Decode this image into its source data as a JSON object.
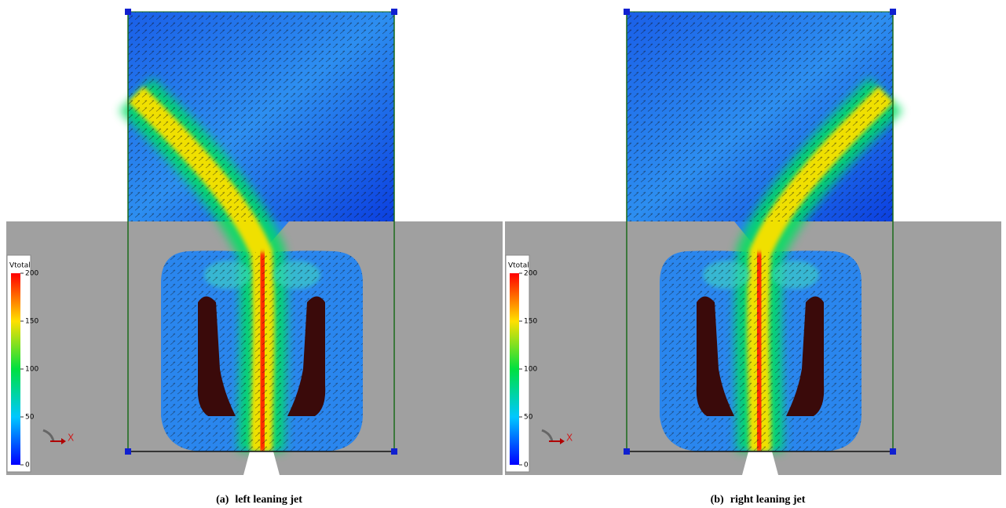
{
  "panels": [
    {
      "label": "(a)",
      "caption": "left leaning jet",
      "colorbar": {
        "title": "Vtotal",
        "ticks": [
          0,
          50,
          100,
          150,
          200
        ]
      },
      "axis_label": "X"
    },
    {
      "label": "(b)",
      "caption": "right leaning jet",
      "colorbar": {
        "title": "Vtotal",
        "ticks": [
          0,
          50,
          100,
          150,
          200
        ]
      },
      "axis_label": "X"
    }
  ]
}
